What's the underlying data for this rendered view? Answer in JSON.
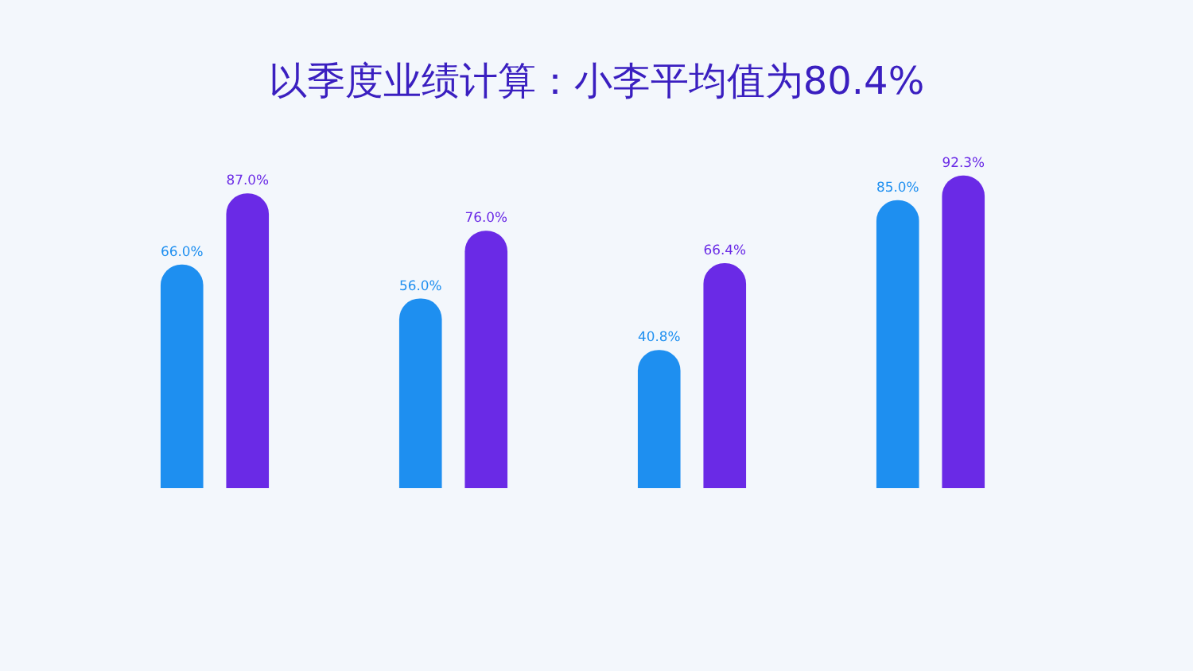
{
  "chart_data": {
    "type": "bar",
    "title": "以季度业绩计算：小李平均值为80.4%",
    "categories": [
      null,
      null,
      null,
      null
    ],
    "series": [
      {
        "color": "#1e8ff0",
        "values": [
          66.0,
          56.0,
          40.8,
          85.0
        ],
        "value_labels": [
          "66.0%",
          "56.0%",
          "40.8%",
          "85.0%"
        ]
      },
      {
        "color": "#6a2ae6",
        "values": [
          87.0,
          76.0,
          66.4,
          92.3
        ],
        "value_labels": [
          "87.0%",
          "76.0%",
          "66.4%",
          "92.3%"
        ]
      }
    ],
    "legend": false
  }
}
